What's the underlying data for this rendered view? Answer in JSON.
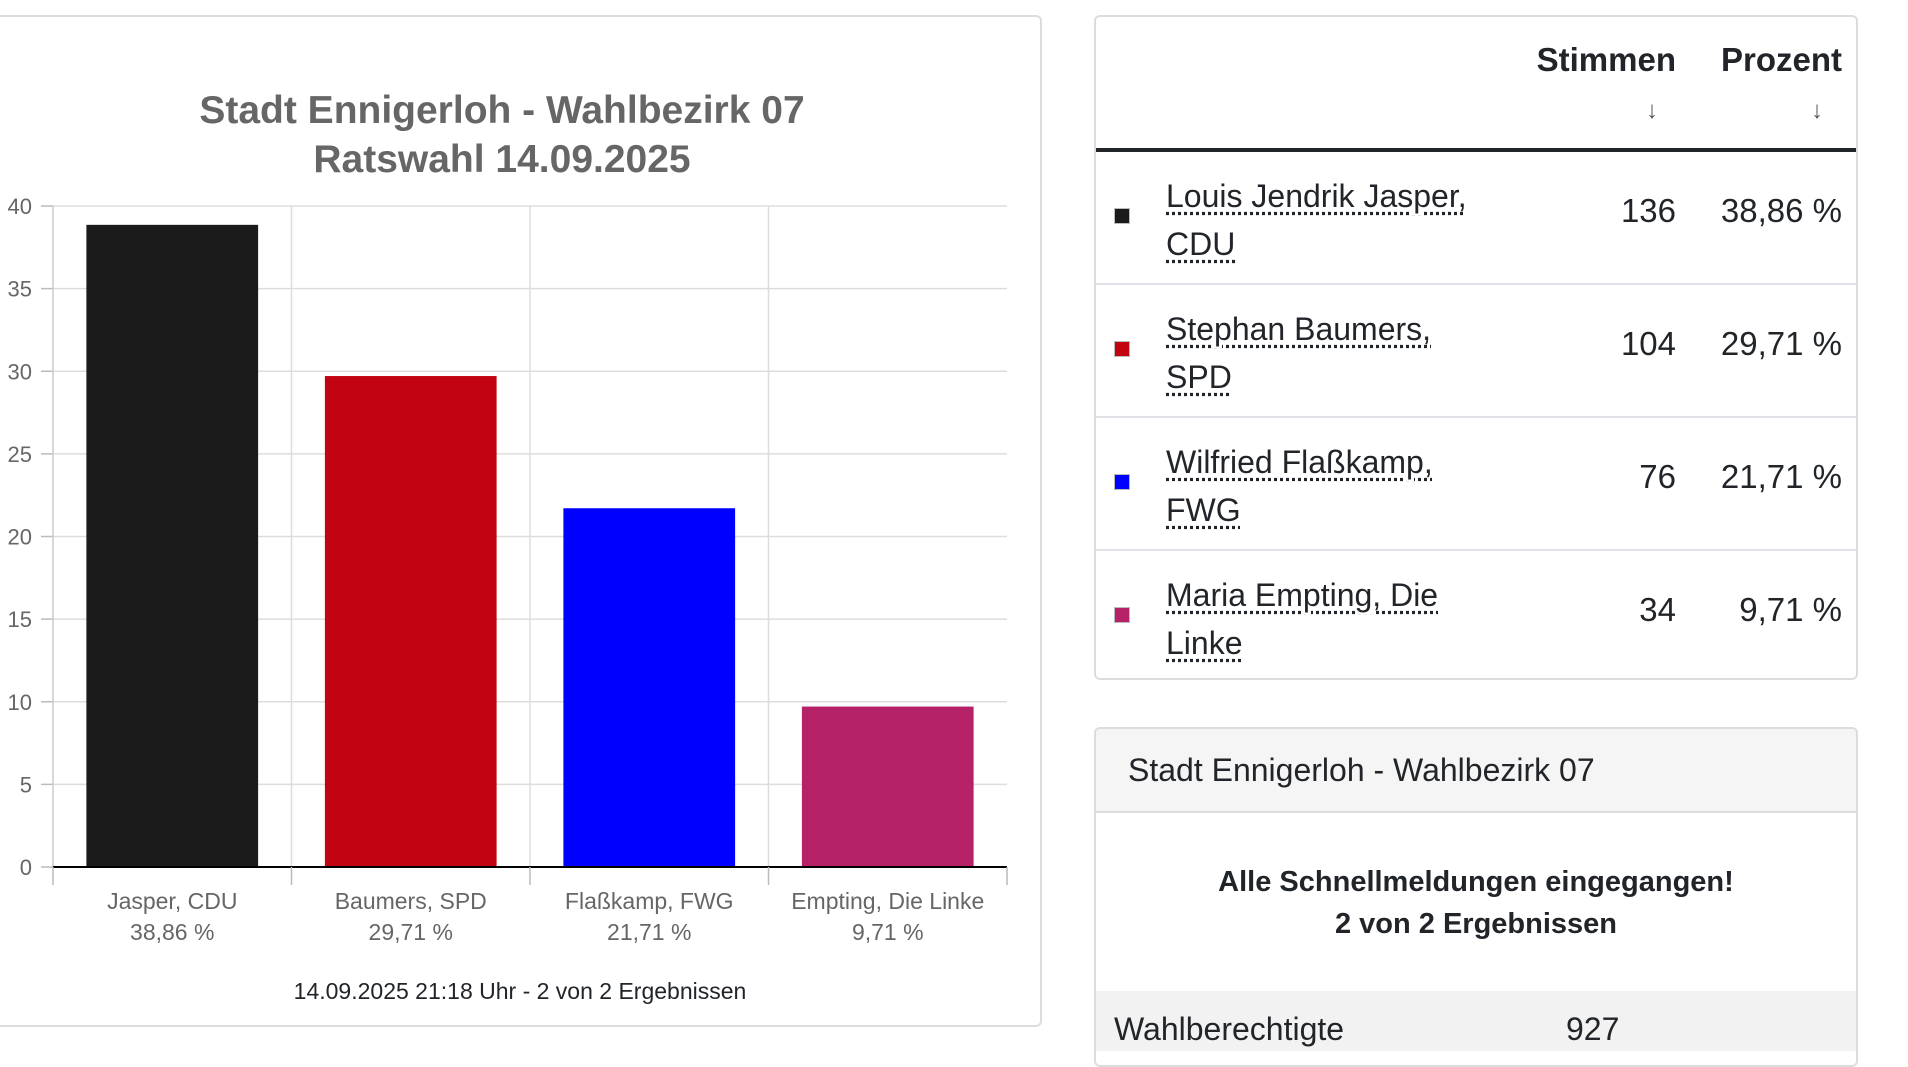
{
  "chart_data": {
    "type": "bar",
    "title": [
      "Stadt Ennigerloh - Wahlbezirk 07",
      "Ratswahl 14.09.2025"
    ],
    "categories": [
      "Jasper, CDU",
      "Baumers, SPD",
      "Flaßkamp, FWG",
      "Empting, Die Linke"
    ],
    "category_values": [
      "38,86 %",
      "29,71 %",
      "21,71 %",
      "9,71 %"
    ],
    "values": [
      38.86,
      29.71,
      21.71,
      9.71
    ],
    "colors": [
      "#1b1b1b",
      "#c20412",
      "#0000ff",
      "#b52268"
    ],
    "yticks": [
      0,
      5,
      10,
      15,
      20,
      25,
      30,
      35,
      40
    ],
    "ylim": [
      0,
      40
    ],
    "grid": true,
    "footer": "14.09.2025 21:18 Uhr - 2 von 2 Ergebnissen"
  },
  "results": {
    "col_stimmen": "Stimmen",
    "col_prozent": "Prozent",
    "sort_arrow": "↓",
    "rows": [
      {
        "name": "Louis Jendrik Jasper, CDU",
        "votes": "136",
        "percent": "38,86 %",
        "color": "#1b1b1b"
      },
      {
        "name": "Stephan Baumers, SPD",
        "votes": "104",
        "percent": "29,71 %",
        "color": "#c20412"
      },
      {
        "name": "Wilfried Flaßkamp, FWG",
        "votes": "76",
        "percent": "21,71 %",
        "color": "#0000ff"
      },
      {
        "name": "Maria Empting, Die Linke",
        "votes": "34",
        "percent": "9,71 %",
        "color": "#b52268"
      }
    ]
  },
  "status": {
    "header": "Stadt Ennigerloh - Wahlbezirk 07",
    "message_line1": "Alle Schnellmeldungen eingegangen!",
    "message_line2": "2 von 2 Ergebnissen",
    "stat_label": "Wahlberechtigte",
    "stat_value": "927"
  }
}
